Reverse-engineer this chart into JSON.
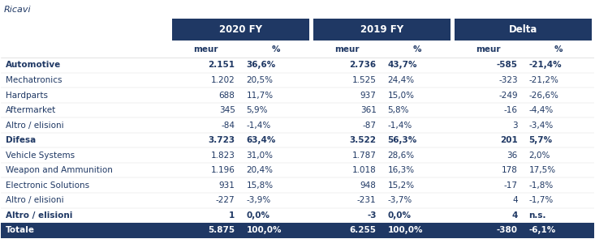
{
  "title_label": "Ricavi",
  "header_bg": "#1F3864",
  "header_text": "#FFFFFF",
  "body_text": "#1F3864",
  "bg_color": "#FFFFFF",
  "col_groups": [
    "2020 FY",
    "2019 FY",
    "Delta"
  ],
  "sub_cols": [
    "meur",
    "%"
  ],
  "rows": [
    {
      "label": "Automotive",
      "bold": true,
      "values": [
        "2.151",
        "36,6%",
        "2.736",
        "43,7%",
        "-585",
        "-21,4%"
      ]
    },
    {
      "label": "Mechatronics",
      "bold": false,
      "values": [
        "1.202",
        "20,5%",
        "1.525",
        "24,4%",
        "-323",
        "-21,2%"
      ]
    },
    {
      "label": "Hardparts",
      "bold": false,
      "values": [
        "688",
        "11,7%",
        "937",
        "15,0%",
        "-249",
        "-26,6%"
      ]
    },
    {
      "label": "Aftermarket",
      "bold": false,
      "values": [
        "345",
        "5,9%",
        "361",
        "5,8%",
        "-16",
        "-4,4%"
      ]
    },
    {
      "label": "Altro / elisioni",
      "bold": false,
      "values": [
        "-84",
        "-1,4%",
        "-87",
        "-1,4%",
        "3",
        "-3,4%"
      ]
    },
    {
      "label": "Difesa",
      "bold": true,
      "values": [
        "3.723",
        "63,4%",
        "3.522",
        "56,3%",
        "201",
        "5,7%"
      ]
    },
    {
      "label": "Vehicle Systems",
      "bold": false,
      "values": [
        "1.823",
        "31,0%",
        "1.787",
        "28,6%",
        "36",
        "2,0%"
      ]
    },
    {
      "label": "Weapon and Ammunition",
      "bold": false,
      "values": [
        "1.196",
        "20,4%",
        "1.018",
        "16,3%",
        "178",
        "17,5%"
      ]
    },
    {
      "label": "Electronic Solutions",
      "bold": false,
      "values": [
        "931",
        "15,8%",
        "948",
        "15,2%",
        "-17",
        "-1,8%"
      ]
    },
    {
      "label": "Altro / elisioni",
      "bold": false,
      "values": [
        "-227",
        "-3,9%",
        "-231",
        "-3,7%",
        "4",
        "-1,7%"
      ]
    },
    {
      "label": "Altro / elisioni",
      "bold": true,
      "values": [
        "1",
        "0,0%",
        "-3",
        "0,0%",
        "4",
        "n.s."
      ]
    },
    {
      "label": "Totale",
      "bold": true,
      "is_total": true,
      "values": [
        "5.875",
        "100,0%",
        "6.255",
        "100,0%",
        "-380",
        "-6,1%"
      ]
    }
  ]
}
